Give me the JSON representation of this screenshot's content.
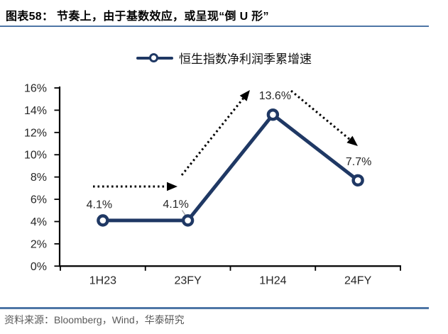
{
  "header": {
    "title": "图表58：  节奏上，由于基数效应，或呈现“倒 U 形”"
  },
  "legend": {
    "series_label": "恒生指数净利润季累增速"
  },
  "chart_data": {
    "type": "line",
    "title": "",
    "xlabel": "",
    "ylabel": "",
    "categories": [
      "1H23",
      "23FY",
      "1H24",
      "24FY"
    ],
    "series": [
      {
        "name": "恒生指数净利润季累增速",
        "values": [
          4.1,
          4.1,
          13.6,
          7.7
        ],
        "point_labels": [
          "4.1%",
          "4.1%",
          "13.6%",
          "7.7%"
        ]
      }
    ],
    "ylim": [
      0,
      16
    ],
    "ytick_step": 2,
    "ytick_labels": [
      "0%",
      "2%",
      "4%",
      "6%",
      "8%",
      "10%",
      "12%",
      "14%",
      "16%"
    ],
    "grid": false,
    "legend_position": "top",
    "annotations": [
      {
        "type": "arrow",
        "style": "dotted",
        "direction": "flat",
        "meaning": "flat from 1H23 to 23FY"
      },
      {
        "type": "arrow",
        "style": "dotted",
        "direction": "up",
        "meaning": "rise from 23FY to 1H24"
      },
      {
        "type": "arrow",
        "style": "dotted",
        "direction": "down",
        "meaning": "fall from 1H24 to 24FY"
      }
    ]
  },
  "footer": {
    "source": "资料来源：Bloomberg，Wind，华泰研究"
  },
  "colors": {
    "series_line": "#1F3864",
    "accent_rule": "#4E76A6",
    "axis_line": "#000000",
    "axis_text": "#262626",
    "footer_text": "#595959",
    "arrow": "#000000",
    "leader_line": "#A6A6A6"
  }
}
